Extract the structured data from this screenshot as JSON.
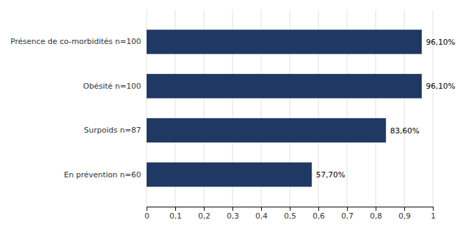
{
  "chart_data": {
    "type": "bar",
    "orientation": "horizontal",
    "categories": [
      "En prévention n=60",
      "Surpoids n=87",
      "Obésité n=100",
      "Présence de co-morbidités n=100"
    ],
    "values": [
      0.577,
      0.836,
      0.961,
      0.961
    ],
    "value_labels": [
      "57,70%",
      "83,60%",
      "96,10%",
      "96,10%"
    ],
    "data_labels": true,
    "color": "#1F3864",
    "xlim": [
      0,
      1.0
    ],
    "xticks": [
      0,
      {
        "value": 0.1,
        "label": "0,1"
      },
      {
        "value": 0.2,
        "label": "0,2"
      },
      {
        "value": 0.3,
        "label": "0,3"
      },
      {
        "value": 0.4,
        "label": "0,4"
      },
      {
        "value": 0.5,
        "label": "0,5"
      },
      {
        "value": 0.6,
        "label": "0,6"
      },
      {
        "value": 0.7,
        "label": "0,7"
      },
      {
        "value": 0.8,
        "label": "0,8"
      },
      {
        "value": 0.9,
        "label": "0,9"
      },
      1
    ],
    "grid": true
  }
}
